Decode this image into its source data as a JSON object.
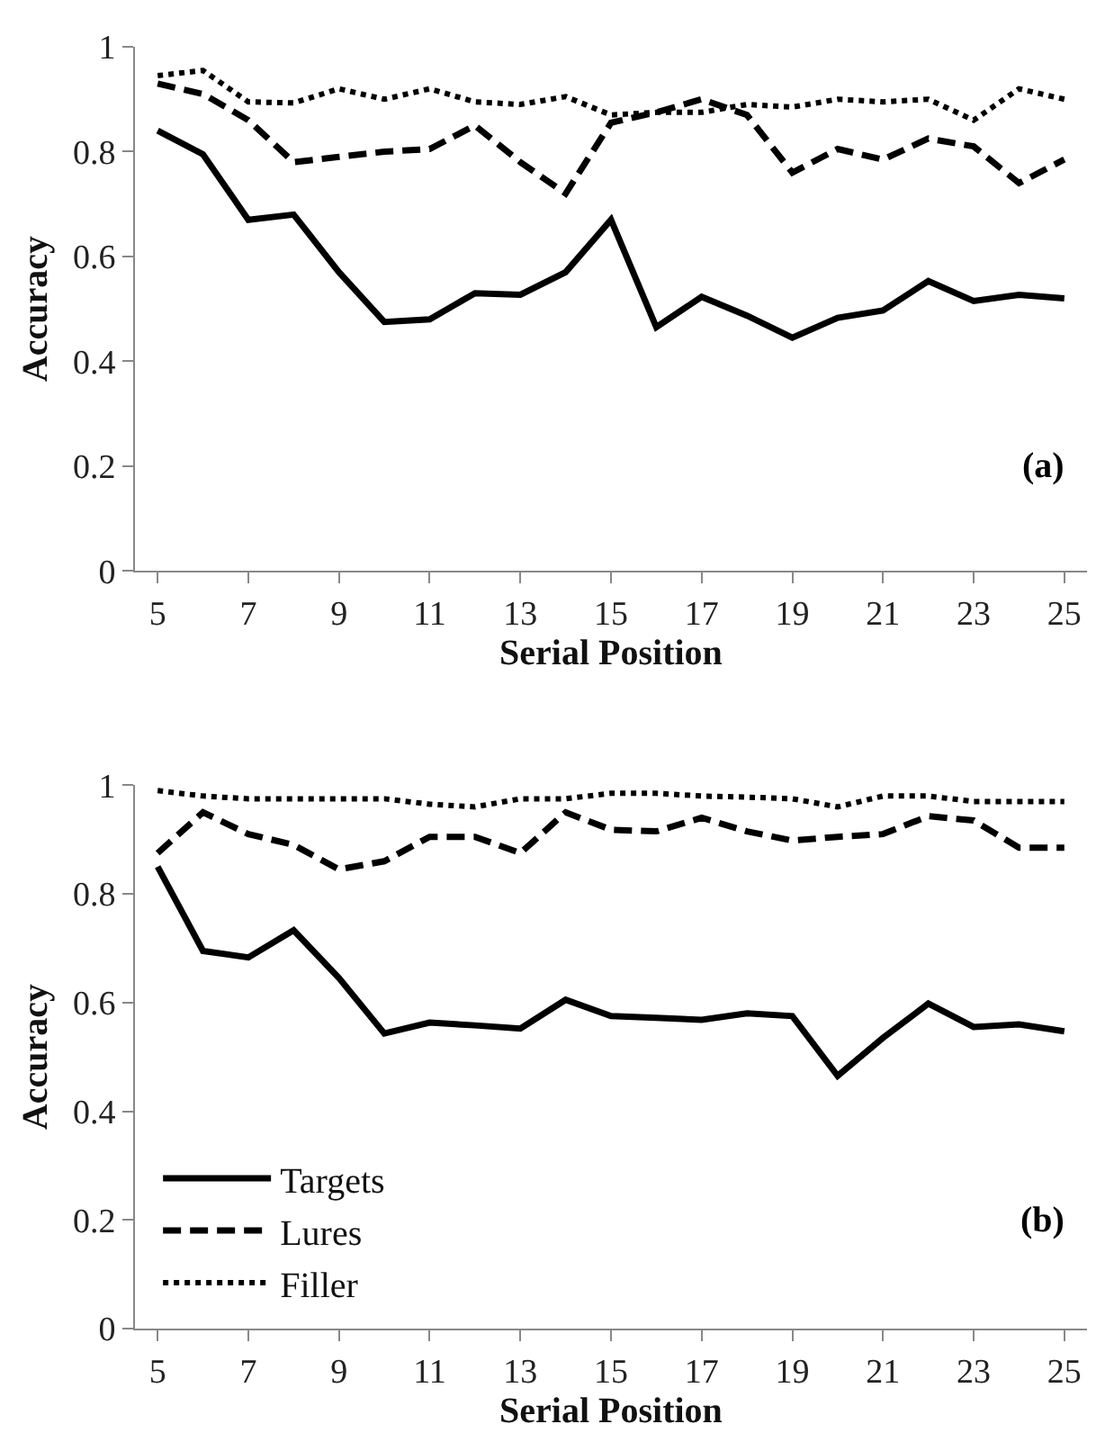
{
  "chart_data": [
    {
      "type": "line",
      "ylabel": "Accuracy",
      "xlabel": "Serial Position",
      "annotations": [
        "(a)"
      ],
      "x": [
        5,
        6,
        7,
        8,
        9,
        10,
        11,
        12,
        13,
        14,
        15,
        16,
        17,
        18,
        19,
        20,
        21,
        22,
        23,
        24,
        25
      ],
      "xlim": [
        4.5,
        25.5
      ],
      "xticks": [
        5,
        7,
        9,
        11,
        13,
        15,
        17,
        19,
        21,
        23,
        25
      ],
      "ylim": [
        0,
        1
      ],
      "yticks": [
        0,
        0.2,
        0.4,
        0.6,
        0.8,
        1
      ],
      "grid": false,
      "legend": false,
      "marker": "none",
      "series": [
        {
          "color": "#000000",
          "line_style": "solid",
          "values": [
            0.84,
            0.795,
            0.67,
            0.68,
            0.57,
            0.475,
            0.48,
            0.53,
            0.527,
            0.57,
            0.67,
            0.465,
            0.523,
            0.487,
            0.445,
            0.483,
            0.497,
            0.553,
            0.515,
            0.527,
            0.52
          ]
        },
        {
          "color": "#000000",
          "line_style": "dashed",
          "values": [
            0.93,
            0.91,
            0.86,
            0.78,
            0.79,
            0.8,
            0.805,
            0.85,
            0.78,
            0.72,
            0.855,
            0.875,
            0.9,
            0.87,
            0.76,
            0.805,
            0.785,
            0.825,
            0.81,
            0.74,
            0.785
          ]
        },
        {
          "color": "#000000",
          "line_style": "dotted",
          "values": [
            0.945,
            0.955,
            0.895,
            0.893,
            0.92,
            0.9,
            0.92,
            0.895,
            0.89,
            0.905,
            0.87,
            0.875,
            0.875,
            0.89,
            0.885,
            0.9,
            0.895,
            0.9,
            0.86,
            0.92,
            0.9
          ]
        }
      ]
    },
    {
      "type": "line",
      "ylabel": "Accuracy",
      "xlabel": "Serial Position",
      "annotations": [
        "(b)"
      ],
      "x": [
        5,
        6,
        7,
        8,
        9,
        10,
        11,
        12,
        13,
        14,
        15,
        16,
        17,
        18,
        19,
        20,
        21,
        22,
        23,
        24,
        25
      ],
      "xlim": [
        4.5,
        25.5
      ],
      "xticks": [
        5,
        7,
        9,
        11,
        13,
        15,
        17,
        19,
        21,
        23,
        25
      ],
      "ylim": [
        0,
        1
      ],
      "yticks": [
        0,
        0.2,
        0.4,
        0.6,
        0.8,
        1
      ],
      "grid": false,
      "legend": "bottom left",
      "marker": "none",
      "series": [
        {
          "name": "Targets",
          "color": "#000000",
          "line_style": "solid",
          "values": [
            0.85,
            0.695,
            0.683,
            0.733,
            0.645,
            0.543,
            0.563,
            0.558,
            0.552,
            0.605,
            0.575,
            0.572,
            0.568,
            0.58,
            0.575,
            0.465,
            0.535,
            0.598,
            0.555,
            0.56,
            0.547
          ]
        },
        {
          "name": "Lures",
          "color": "#000000",
          "line_style": "dashed",
          "values": [
            0.875,
            0.95,
            0.91,
            0.89,
            0.845,
            0.86,
            0.905,
            0.905,
            0.875,
            0.95,
            0.918,
            0.915,
            0.94,
            0.915,
            0.898,
            0.905,
            0.91,
            0.943,
            0.935,
            0.885,
            0.885
          ]
        },
        {
          "name": "Filler",
          "color": "#000000",
          "line_style": "dotted",
          "values": [
            0.99,
            0.98,
            0.975,
            0.975,
            0.975,
            0.975,
            0.965,
            0.96,
            0.975,
            0.975,
            0.985,
            0.985,
            0.98,
            0.978,
            0.975,
            0.96,
            0.98,
            0.98,
            0.97,
            0.97,
            0.97
          ]
        }
      ]
    }
  ]
}
